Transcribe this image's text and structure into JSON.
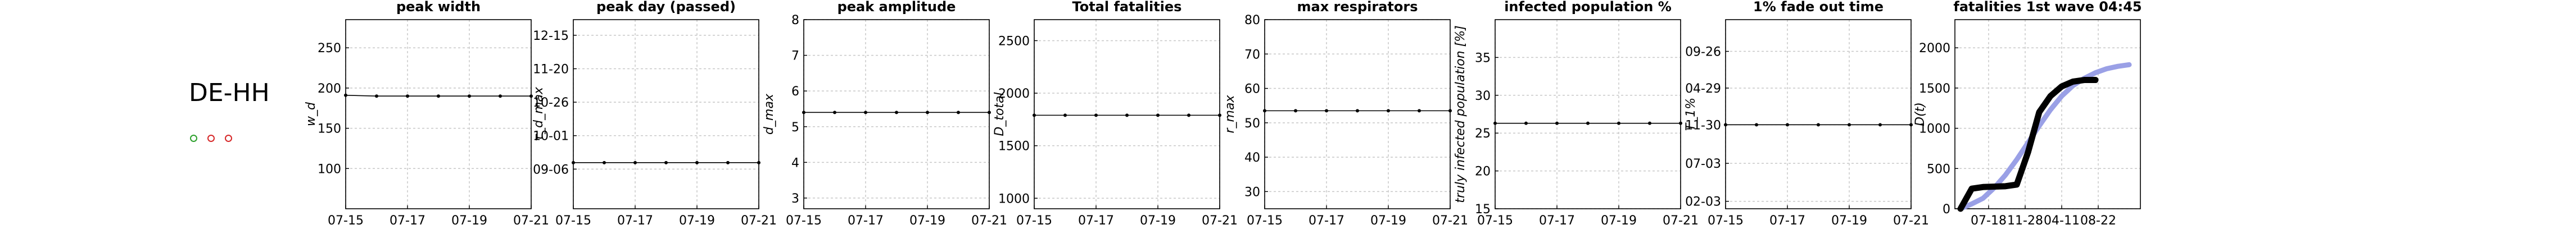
{
  "region": "DE-HH",
  "legend_markers": [
    {
      "name": "green-circle-marker",
      "color": "#2ca02c"
    },
    {
      "name": "red-circle-marker",
      "color": "#d62728"
    },
    {
      "name": "red-circle-marker",
      "color": "#d62728"
    }
  ],
  "chart_data": [
    {
      "type": "line",
      "title": "peak width",
      "ylabel": "w_d",
      "categories": [
        "07-15",
        "07-16",
        "07-17",
        "07-18",
        "07-19",
        "07-20",
        "07-21"
      ],
      "xtick_labels": [
        "07-15",
        "07-17",
        "07-19",
        "07-21"
      ],
      "series": [
        {
          "values": [
            191,
            190,
            190,
            190,
            190,
            190,
            190
          ]
        }
      ],
      "ylim": [
        50,
        285
      ],
      "yticks": [
        100,
        150,
        200,
        250
      ],
      "ytick_labels": [
        "100",
        "150",
        "200",
        "250"
      ],
      "grid": true
    },
    {
      "type": "line",
      "title": "peak day (passed)",
      "ylabel": "τ_d_max",
      "categories": [
        "07-15",
        "07-16",
        "07-17",
        "07-18",
        "07-19",
        "07-20",
        "07-21"
      ],
      "xtick_labels": [
        "07-15",
        "07-17",
        "07-19",
        "07-21"
      ],
      "series": [
        {
          "values": [
            10.7,
            10.7,
            10.7,
            10.7,
            10.7,
            10.7,
            10.7
          ]
        }
      ],
      "ylim": [
        -21,
        109
      ],
      "yticks": [
        6.25,
        29.25,
        52.25,
        75.25,
        98.25
      ],
      "ytick_labels": [
        "09-06",
        "10-01",
        "10-26",
        "11-20",
        "12-15"
      ],
      "grid": true
    },
    {
      "type": "line",
      "title": "peak amplitude",
      "ylabel": "d_max",
      "categories": [
        "07-15",
        "07-16",
        "07-17",
        "07-18",
        "07-19",
        "07-20",
        "07-21"
      ],
      "xtick_labels": [
        "07-15",
        "07-17",
        "07-19",
        "07-21"
      ],
      "series": [
        {
          "values": [
            5.4,
            5.4,
            5.4,
            5.4,
            5.4,
            5.4,
            5.4
          ]
        }
      ],
      "ylim": [
        2.7,
        8
      ],
      "yticks": [
        3,
        4,
        5,
        6,
        7,
        8
      ],
      "ytick_labels": [
        "3",
        "4",
        "5",
        "6",
        "7",
        "8"
      ],
      "grid": true
    },
    {
      "type": "line",
      "title": "Total fatalities",
      "ylabel": "D_total",
      "categories": [
        "07-15",
        "07-16",
        "07-17",
        "07-18",
        "07-19",
        "07-20",
        "07-21"
      ],
      "xtick_labels": [
        "07-15",
        "07-17",
        "07-19",
        "07-21"
      ],
      "series": [
        {
          "values": [
            1790,
            1790,
            1790,
            1790,
            1790,
            1790,
            1790
          ]
        }
      ],
      "ylim": [
        900,
        2700
      ],
      "yticks": [
        1000,
        1500,
        2000,
        2500
      ],
      "ytick_labels": [
        "1000",
        "1500",
        "2000",
        "2500"
      ],
      "grid": true
    },
    {
      "type": "line",
      "title": "max respirators",
      "ylabel": "r_max",
      "categories": [
        "07-15",
        "07-16",
        "07-17",
        "07-18",
        "07-19",
        "07-20",
        "07-21"
      ],
      "xtick_labels": [
        "07-15",
        "07-17",
        "07-19",
        "07-21"
      ],
      "series": [
        {
          "values": [
            53.5,
            53.5,
            53.5,
            53.5,
            53.5,
            53.5,
            53.5
          ]
        }
      ],
      "ylim": [
        25,
        80
      ],
      "yticks": [
        30,
        40,
        50,
        60,
        70,
        80
      ],
      "ytick_labels": [
        "30",
        "40",
        "50",
        "60",
        "70",
        "80"
      ],
      "grid": true
    },
    {
      "type": "line",
      "title": "infected population %",
      "ylabel": "truly infected population [%]",
      "categories": [
        "07-15",
        "07-16",
        "07-17",
        "07-18",
        "07-19",
        "07-20",
        "07-21"
      ],
      "xtick_labels": [
        "07-15",
        "07-17",
        "07-19",
        "07-21"
      ],
      "series": [
        {
          "values": [
            26.3,
            26.3,
            26.3,
            26.3,
            26.3,
            26.3,
            26.3
          ]
        }
      ],
      "ylim": [
        15,
        40
      ],
      "yticks": [
        15,
        20,
        25,
        30,
        35
      ],
      "ytick_labels": [
        "15",
        "20",
        "25",
        "30",
        "35"
      ],
      "grid": true
    },
    {
      "type": "line",
      "title": "1% fade out time",
      "ylabel": "T_1%",
      "categories": [
        "07-15",
        "07-16",
        "07-17",
        "07-18",
        "07-19",
        "07-20",
        "07-21"
      ],
      "xtick_labels": [
        "07-15",
        "07-17",
        "07-19",
        "07-21"
      ],
      "series": [
        {
          "values": [
            123,
            123,
            123,
            123,
            123,
            123,
            123
          ]
        }
      ],
      "ylim": [
        -12,
        292
      ],
      "yticks": [
        0,
        61,
        123,
        182,
        241
      ],
      "ytick_labels": [
        "02-03",
        "07-03",
        "11-30",
        "04-29",
        "09-26"
      ],
      "grid": true
    },
    {
      "type": "line",
      "title": "fatalities 1st wave 04:45",
      "ylabel": "D(t)",
      "x": [
        0,
        40,
        80,
        120,
        160,
        200,
        240,
        280,
        320,
        360,
        400,
        440,
        480,
        520,
        560,
        600
      ],
      "xtick_labels": [
        "07-18",
        "11-28",
        "04-11",
        "08-22"
      ],
      "series": [
        {
          "values": [
            0,
            60,
            130,
            260,
            420,
            610,
            820,
            1030,
            1230,
            1400,
            1530,
            1620,
            1690,
            1740,
            1770,
            1790
          ]
        },
        {
          "values": [
            0,
            250,
            270,
            275,
            280,
            300,
            700,
            1200,
            1400,
            1520,
            1580,
            1600,
            1600,
            null,
            null,
            null
          ]
        }
      ],
      "ylim": [
        0,
        2350
      ],
      "yticks": [
        0,
        500,
        1000,
        1500,
        2000
      ],
      "ytick_labels": [
        "0",
        "500",
        "1000",
        "1500",
        "2000"
      ],
      "grid": true
    }
  ]
}
